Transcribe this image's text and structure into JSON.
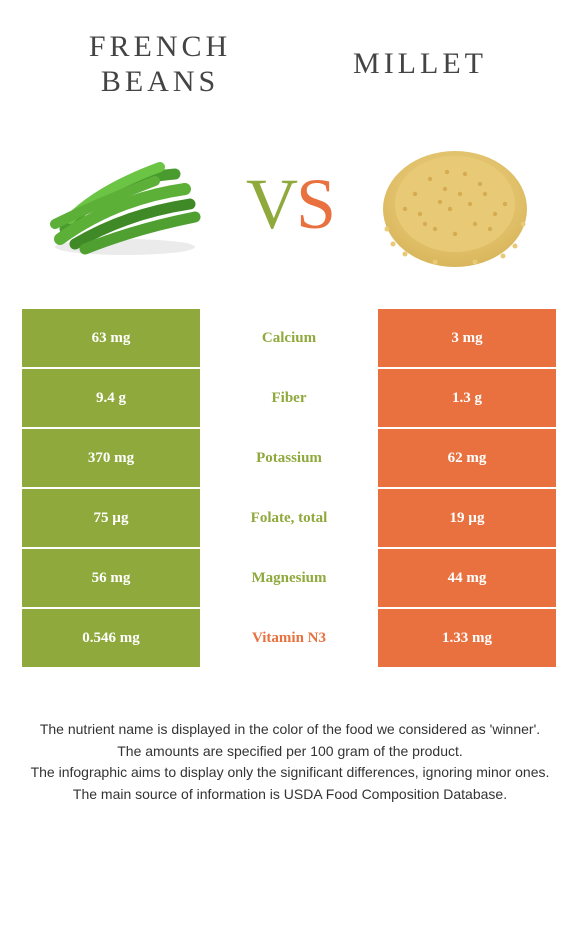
{
  "colors": {
    "left": "#8fa93c",
    "right": "#e8713f",
    "bg": "#ffffff",
    "text": "#333333"
  },
  "food_left": {
    "title": "French beans"
  },
  "food_right": {
    "title": "Millet"
  },
  "vs": {
    "v": "V",
    "s": "S"
  },
  "rows": [
    {
      "left": "63 mg",
      "label": "Calcium",
      "right": "3 mg",
      "winner": "left"
    },
    {
      "left": "9.4 g",
      "label": "Fiber",
      "right": "1.3 g",
      "winner": "left"
    },
    {
      "left": "370 mg",
      "label": "Potassium",
      "right": "62 mg",
      "winner": "left"
    },
    {
      "left": "75 µg",
      "label": "Folate, total",
      "right": "19 µg",
      "winner": "left"
    },
    {
      "left": "56 mg",
      "label": "Magnesium",
      "right": "44 mg",
      "winner": "left"
    },
    {
      "left": "0.546 mg",
      "label": "Vitamin N3",
      "right": "1.33 mg",
      "winner": "right"
    }
  ],
  "footer": {
    "l1": "The nutrient name is displayed in the color of the food we considered as 'winner'.",
    "l2": "The amounts are specified per 100 gram of the product.",
    "l3": "The infographic aims to display only the significant differences, ignoring minor ones.",
    "l4": "The main source of information is USDA Food Composition Database."
  }
}
